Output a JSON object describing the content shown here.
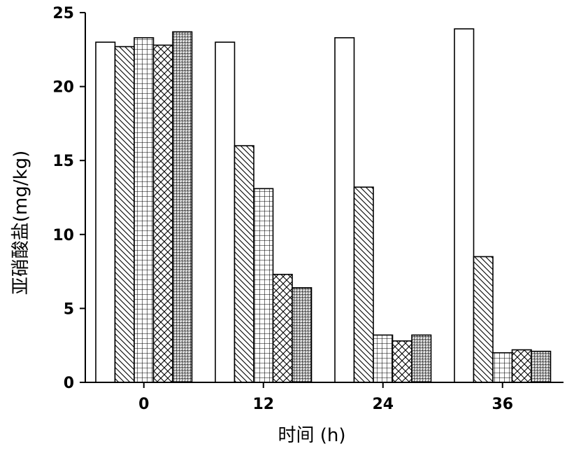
{
  "chart_data": {
    "type": "bar",
    "title": "",
    "xlabel": "时间 (h)",
    "ylabel": "亚硝酸盐(mg/kg)",
    "categories": [
      "0",
      "12",
      "24",
      "36"
    ],
    "ylim": [
      0,
      25
    ],
    "yticks": [
      0,
      5,
      10,
      15,
      20,
      25
    ],
    "grid": false,
    "legend": "none",
    "series": [
      {
        "pattern": "blank",
        "values": [
          23.0,
          23.0,
          23.3,
          23.9
        ]
      },
      {
        "pattern": "diagonal",
        "values": [
          22.7,
          16.0,
          13.2,
          8.5
        ]
      },
      {
        "pattern": "grid",
        "values": [
          23.3,
          13.1,
          3.2,
          2.0
        ]
      },
      {
        "pattern": "crosshatch",
        "values": [
          22.8,
          7.3,
          2.8,
          2.2
        ]
      },
      {
        "pattern": "dense",
        "values": [
          23.7,
          6.4,
          3.2,
          2.1
        ]
      }
    ]
  }
}
